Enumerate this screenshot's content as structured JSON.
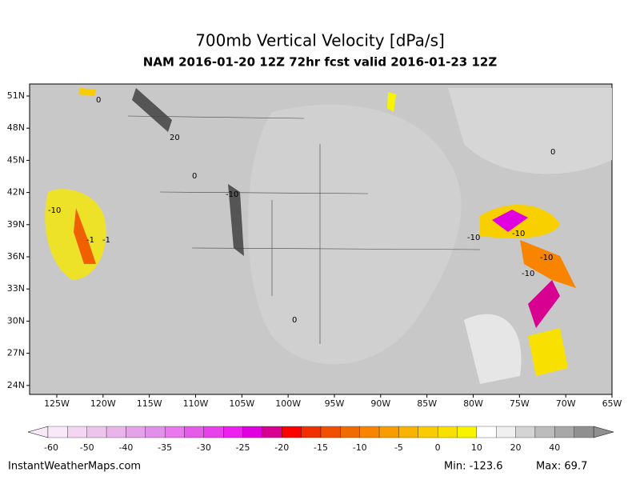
{
  "title": "700mb Vertical Velocity [dPa/s]",
  "subtitle": "NAM 2016-01-20 12Z 72hr fcst valid 2016-01-23 12Z",
  "lat_labels": [
    "51N",
    "48N",
    "45N",
    "42N",
    "39N",
    "36N",
    "33N",
    "30N",
    "27N",
    "24N"
  ],
  "lon_labels": [
    "125W",
    "120W",
    "115W",
    "110W",
    "105W",
    "100W",
    "95W",
    "90W",
    "85W",
    "80W",
    "75W",
    "70W",
    "65W"
  ],
  "colorbar": {
    "labels": [
      "-60",
      "-50",
      "-40",
      "-35",
      "-30",
      "-25",
      "-20",
      "-15",
      "-10",
      "-5",
      "0",
      "10",
      "20",
      "40"
    ],
    "colors": [
      "#f8e8f8",
      "#f2d6f2",
      "#ecc4ec",
      "#e8b4ea",
      "#e4a2e8",
      "#e090e8",
      "#e878ec",
      "#e45ce8",
      "#e840ea",
      "#ee20ee",
      "#e000e0",
      "#d80090",
      "#ff0000",
      "#f03000",
      "#f05000",
      "#f06c00",
      "#f88400",
      "#f89c00",
      "#f8b400",
      "#f8cc00",
      "#f8e000",
      "#f8f400",
      "#ffffff",
      "#f0f0f0",
      "#d4d4d4",
      "#bcbcbc",
      "#a8a8a8",
      "#909090"
    ]
  },
  "contour_labels": [
    "0",
    "20",
    "0",
    "-10",
    "-10",
    "-1",
    "-1",
    "-10",
    "-10",
    "-10",
    "-10",
    "0",
    "0"
  ],
  "footer": {
    "site": "InstantWeatherMaps.com",
    "min": "Min: -123.6",
    "max": "Max: 69.7"
  }
}
